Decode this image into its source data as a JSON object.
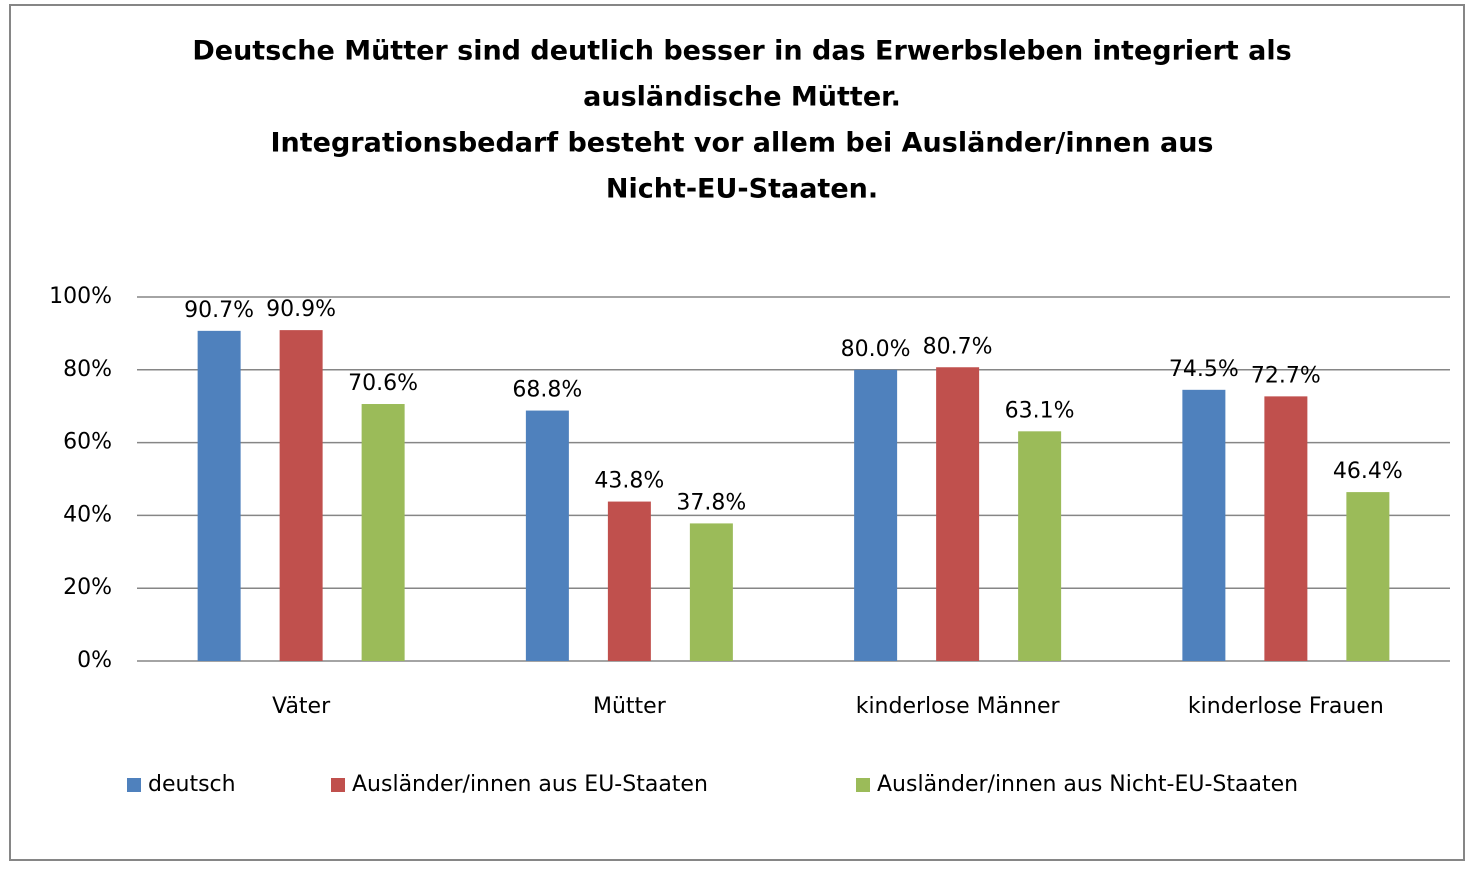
{
  "chart_data": {
    "type": "bar",
    "title": [
      "Deutsche Mütter sind deutlich besser in das Erwerbsleben integriert als",
      "ausländische Mütter.",
      "Integrationsbedarf besteht vor allem bei Ausländer/innen aus",
      "Nicht-EU-Staaten."
    ],
    "categories": [
      "Väter",
      "Mütter",
      "kinderlose Männer",
      "kinderlose Frauen"
    ],
    "series": [
      {
        "name": "deutsch",
        "color": "#4f81bd",
        "values": [
          90.7,
          68.8,
          80.0,
          74.5
        ],
        "value_labels": [
          "90.7%",
          "68.8%",
          "80.0%",
          "74.5%"
        ]
      },
      {
        "name": "Ausländer/innen aus EU-Staaten",
        "color": "#c0504d",
        "values": [
          90.9,
          43.8,
          80.7,
          72.7
        ],
        "value_labels": [
          "90.9%",
          "43.8%",
          "80.7%",
          "72.7%"
        ]
      },
      {
        "name": "Ausländer/innen aus Nicht-EU-Staaten",
        "color": "#9bbb59",
        "values": [
          70.6,
          37.8,
          63.1,
          46.4
        ],
        "value_labels": [
          "70.6%",
          "37.8%",
          "63.1%",
          "46.4%"
        ]
      }
    ],
    "ylim": [
      0,
      100
    ],
    "yticks": [
      {
        "value": 0,
        "label": "0%"
      },
      {
        "value": 20,
        "label": "20%"
      },
      {
        "value": 40,
        "label": "40%"
      },
      {
        "value": 60,
        "label": "60%"
      },
      {
        "value": 80,
        "label": "80%"
      },
      {
        "value": 100,
        "label": "100%"
      }
    ],
    "grid": true,
    "legend": "bottom"
  }
}
